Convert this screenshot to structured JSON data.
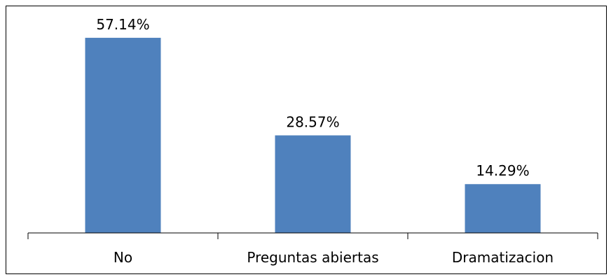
{
  "chart_data": {
    "type": "bar",
    "categories": [
      "No",
      "Preguntas abiertas",
      "Dramatizacion"
    ],
    "values": [
      57.14,
      28.57,
      14.29
    ],
    "data_labels": [
      "57.14%",
      "28.57%",
      "14.29%"
    ],
    "unit": "%",
    "title": "",
    "xlabel": "",
    "ylabel": "",
    "ylim": [
      0,
      65
    ],
    "grid": false,
    "legend": "none",
    "colors": {
      "bar": "#4f81bd",
      "axis": "#000000",
      "text": "#000000"
    }
  }
}
